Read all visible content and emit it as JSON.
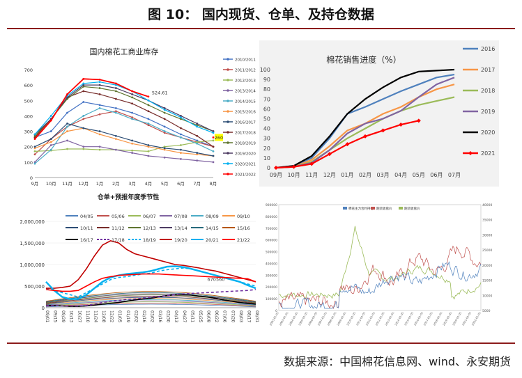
{
  "figure": {
    "title": "图 10：   国内现货、仓单、及持仓数据",
    "source": "数据来源：中国棉花信息网、wind、永安期货"
  },
  "chart_data": [
    {
      "id": "inventory",
      "type": "line",
      "title": "国内棉花工商业库存",
      "categories": [
        "9月",
        "10月",
        "11月",
        "12月",
        "1月",
        "2月",
        "3月",
        "4月",
        "5月",
        "6月",
        "7月",
        "8月"
      ],
      "ylim": [
        0,
        700
      ],
      "yticks": [
        0,
        100,
        200,
        300,
        400,
        500,
        600,
        700
      ],
      "annotations": [
        "524.61",
        "260"
      ],
      "series": [
        {
          "name": "2010/2011",
          "color": "#4472c4",
          "values": [
            260,
            300,
            420,
            490,
            470,
            450,
            420,
            380,
            330,
            280,
            240,
            200
          ]
        },
        {
          "name": "2011/2012",
          "color": "#c0504d",
          "values": [
            150,
            250,
            330,
            380,
            410,
            430,
            390,
            340,
            290,
            260,
            230,
            200
          ]
        },
        {
          "name": "2012/2013",
          "color": "#9bbb59",
          "values": [
            170,
            175,
            185,
            185,
            180,
            180,
            175,
            170,
            200,
            210,
            230,
            240
          ]
        },
        {
          "name": "2013/2014",
          "color": "#8064a2",
          "values": [
            100,
            210,
            240,
            200,
            200,
            180,
            160,
            140,
            130,
            120,
            110,
            100
          ]
        },
        {
          "name": "2014/2015",
          "color": "#4bacc6",
          "values": [
            90,
            180,
            330,
            400,
            450,
            420,
            380,
            350,
            300,
            260,
            220,
            170
          ]
        },
        {
          "name": "2015/2016",
          "color": "#f79646",
          "values": [
            190,
            230,
            300,
            320,
            280,
            250,
            220,
            200,
            180,
            160,
            150,
            140
          ]
        },
        {
          "name": "2016/2017",
          "color": "#2c4d75",
          "values": [
            200,
            250,
            350,
            320,
            300,
            270,
            240,
            210,
            190,
            180,
            160,
            140
          ]
        },
        {
          "name": "2017/2018",
          "color": "#772c2a",
          "values": [
            260,
            380,
            520,
            560,
            540,
            510,
            480,
            430,
            380,
            320,
            270,
            200
          ]
        },
        {
          "name": "2018/2019",
          "color": "#5f7530",
          "values": [
            270,
            380,
            510,
            590,
            580,
            560,
            520,
            470,
            420,
            380,
            340,
            300
          ]
        },
        {
          "name": "2019/2020",
          "color": "#4d3b62",
          "values": [
            280,
            380,
            520,
            600,
            600,
            580,
            540,
            500,
            450,
            400,
            350,
            300
          ]
        },
        {
          "name": "2020/2021",
          "color": "#00b0f0",
          "values": [
            280,
            400,
            530,
            610,
            620,
            600,
            560,
            500,
            440,
            390,
            330,
            290
          ]
        },
        {
          "name": "2021/2022",
          "color": "#ff0000",
          "values": [
            250,
            370,
            540,
            640,
            635,
            610,
            560,
            525,
            null,
            null,
            null,
            260
          ]
        }
      ]
    },
    {
      "id": "sales",
      "type": "line",
      "title": "棉花销售进度（%）",
      "categories": [
        "09月",
        "10月",
        "11月",
        "12月",
        "01月",
        "02月",
        "03月",
        "04月",
        "05月",
        "06月",
        "07月"
      ],
      "ylim": [
        0,
        100
      ],
      "yticks": [
        0,
        10,
        20,
        30,
        40,
        50,
        60,
        70,
        80,
        90,
        100
      ],
      "series": [
        {
          "name": "2016",
          "color": "#4f81bd",
          "values": [
            0,
            2,
            10,
            30,
            55,
            62,
            70,
            78,
            85,
            92,
            95
          ]
        },
        {
          "name": "2017",
          "color": "#f79646",
          "values": [
            0,
            1,
            8,
            22,
            38,
            45,
            55,
            62,
            72,
            80,
            85
          ]
        },
        {
          "name": "2018",
          "color": "#9bbb59",
          "values": [
            0,
            1,
            6,
            18,
            30,
            40,
            50,
            58,
            64,
            68,
            72
          ]
        },
        {
          "name": "2019",
          "color": "#8064a2",
          "values": [
            0,
            1,
            5,
            18,
            35,
            45,
            50,
            58,
            72,
            85,
            92
          ]
        },
        {
          "name": "2020",
          "color": "#000000",
          "values": [
            0,
            2,
            12,
            32,
            55,
            70,
            82,
            92,
            98,
            99,
            100
          ]
        },
        {
          "name": "2021",
          "color": "#ff0000",
          "values": [
            0,
            1,
            4,
            14,
            24,
            32,
            38,
            44,
            48,
            null,
            null
          ]
        }
      ]
    },
    {
      "id": "warehouse",
      "type": "line",
      "title": "仓单+预报年度季节性",
      "categories": [
        "09/01",
        "09/15",
        "09/29",
        "10/13",
        "10/27",
        "11/10",
        "11/24",
        "12/08",
        "12/22",
        "01/05",
        "01/19",
        "02/02",
        "02/16",
        "03/02",
        "03/16",
        "03/30",
        "04/13",
        "04/27",
        "05/11",
        "05/25",
        "06/08",
        "06/22",
        "07/06",
        "07/20",
        "08/03",
        "08/17",
        "08/31"
      ],
      "ylim": [
        0,
        2000000
      ],
      "yticks": [
        0,
        500000,
        1000000,
        1500000,
        2000000
      ],
      "annotations": [
        "670560"
      ],
      "series": [
        {
          "name": "04/05",
          "color": "#4f81bd",
          "dash": false
        },
        {
          "name": "05/06",
          "color": "#c0504d",
          "dash": false
        },
        {
          "name": "06/07",
          "color": "#9bbb59",
          "dash": false
        },
        {
          "name": "07/08",
          "color": "#8064a2",
          "dash": false
        },
        {
          "name": "08/09",
          "color": "#4bacc6",
          "dash": false
        },
        {
          "name": "09/10",
          "color": "#f79646",
          "dash": false
        },
        {
          "name": "10/11",
          "color": "#2c4d75",
          "dash": false
        },
        {
          "name": "11/12",
          "color": "#772c2a",
          "dash": false
        },
        {
          "name": "12/13",
          "color": "#5f7530",
          "dash": false
        },
        {
          "name": "13/14",
          "color": "#4d3b62",
          "dash": false
        },
        {
          "name": "14/15",
          "color": "#276a7c",
          "dash": false
        },
        {
          "name": "15/16",
          "color": "#b65708",
          "dash": false
        },
        {
          "name": "16/17",
          "color": "#000000",
          "dash": false,
          "values": [
            60000,
            50000,
            40000,
            30000,
            30000,
            40000,
            60000,
            80000,
            100000,
            120000,
            150000,
            180000,
            200000,
            220000,
            250000,
            280000,
            300000,
            300000,
            290000,
            270000,
            250000,
            220000,
            180000,
            150000,
            120000,
            100000,
            80000
          ]
        },
        {
          "name": "17/18",
          "color": "#7030a0",
          "dash": true,
          "values": [
            50000,
            50000,
            40000,
            40000,
            40000,
            50000,
            80000,
            120000,
            150000,
            170000,
            190000,
            200000,
            220000,
            240000,
            260000,
            280000,
            300000,
            320000,
            330000,
            340000,
            350000,
            360000,
            370000,
            380000,
            390000,
            400000,
            420000
          ]
        },
        {
          "name": "18/19",
          "color": "#00b0f0",
          "dash": true,
          "values": [
            450000,
            400000,
            350000,
            300000,
            250000,
            350000,
            450000,
            550000,
            650000,
            700000,
            720000,
            750000,
            780000,
            800000,
            850000,
            880000,
            900000,
            920000,
            900000,
            850000,
            800000,
            750000,
            700000,
            650000,
            600000,
            550000,
            500000
          ]
        },
        {
          "name": "19/20",
          "color": "#c00000",
          "dash": false,
          "values": [
            450000,
            450000,
            470000,
            500000,
            650000,
            900000,
            1200000,
            1450000,
            1550000,
            1500000,
            1350000,
            1250000,
            1200000,
            1150000,
            1100000,
            1050000,
            1000000,
            980000,
            950000,
            920000,
            880000,
            850000,
            800000,
            750000,
            700000,
            650000,
            600000
          ]
        },
        {
          "name": "20/21",
          "color": "#00b0f0",
          "dash": false,
          "values": [
            600000,
            400000,
            250000,
            200000,
            200000,
            300000,
            450000,
            600000,
            700000,
            750000,
            780000,
            800000,
            820000,
            850000,
            900000,
            950000,
            960000,
            940000,
            900000,
            850000,
            800000,
            750000,
            700000,
            650000,
            600000,
            520000,
            450000
          ]
        },
        {
          "name": "21/22",
          "color": "#ff0000",
          "dash": false,
          "values": [
            420000,
            400000,
            380000,
            380000,
            400000,
            500000,
            600000,
            680000,
            720000,
            750000,
            760000,
            770000,
            780000,
            780000,
            780000,
            770000,
            760000,
            750000,
            740000,
            730000,
            720000,
            710000,
            700000,
            690000,
            680000,
            670560,
            600000
          ]
        }
      ]
    },
    {
      "id": "positions",
      "type": "line",
      "title": "",
      "legend": [
        "棉花主力合约持仓",
        "期货收盘价",
        "期货收盘价"
      ],
      "yticks_left": [
        "0",
        "100000",
        "200000",
        "300000",
        "400000",
        "500000",
        "600000",
        "700000",
        "800000",
        "900000"
      ],
      "yticks_right": [
        "5000",
        "10000",
        "15000",
        "20000",
        "25000",
        "30000",
        "35000",
        "40000"
      ]
    }
  ]
}
